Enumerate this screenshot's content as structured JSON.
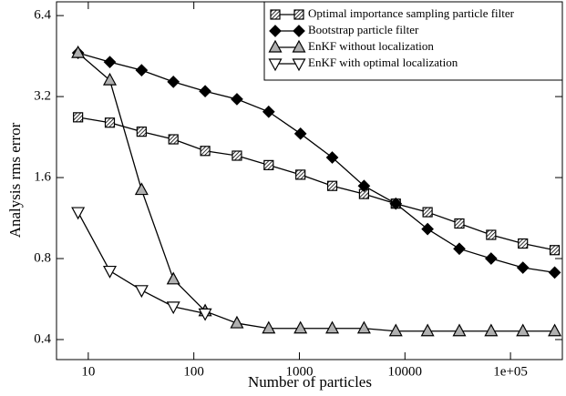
{
  "chart_data": {
    "type": "line",
    "x_label": "Number of particles",
    "y_label": "Analysis rms error",
    "x": [
      8,
      16,
      32,
      64,
      128,
      256,
      512,
      1024,
      2048,
      4096,
      8192,
      16384,
      32768,
      65536,
      131072,
      262144
    ],
    "series": [
      {
        "name": "Optimal importance sampling particle filter",
        "color": "#ffffff",
        "marker": "square-hatched",
        "values": [
          2.68,
          2.56,
          2.37,
          2.22,
          2.01,
          1.93,
          1.78,
          1.64,
          1.49,
          1.39,
          1.28,
          1.19,
          1.08,
          0.98,
          0.91,
          0.86
        ]
      },
      {
        "name": "Bootstrap particle filter",
        "color": "#000000",
        "marker": "diamond",
        "values": [
          4.65,
          4.3,
          4.01,
          3.63,
          3.35,
          3.13,
          2.81,
          2.33,
          1.9,
          1.49,
          1.28,
          1.03,
          0.87,
          0.8,
          0.74,
          0.71
        ]
      },
      {
        "name": "EnKF without localization",
        "color": "#b0b0b0",
        "marker": "triangle-up",
        "values": [
          4.65,
          3.68,
          1.44,
          0.67,
          0.51,
          0.46,
          0.44,
          0.44,
          0.44,
          0.44,
          0.43,
          0.43,
          0.43,
          0.43,
          0.43,
          0.43
        ]
      },
      {
        "name": "EnKF with optimal localization",
        "color": "#ffffff",
        "marker": "triangle-down",
        "values": [
          1.19,
          0.72,
          0.61,
          0.53,
          0.5,
          null,
          null,
          null,
          null,
          null,
          null,
          null,
          null,
          null,
          null,
          null
        ]
      }
    ],
    "xscale": "log",
    "yscale": "log",
    "xlim": [
      5,
      310000
    ],
    "xticks": [
      10,
      100,
      1000,
      10000,
      {
        "value": 100000,
        "label": "1e+05"
      }
    ],
    "ylim": [
      0.337,
      7.2
    ],
    "yticks": [
      0.4,
      0.8,
      1.6,
      3.2,
      6.4
    ],
    "grid": false,
    "legend": "upper right"
  }
}
